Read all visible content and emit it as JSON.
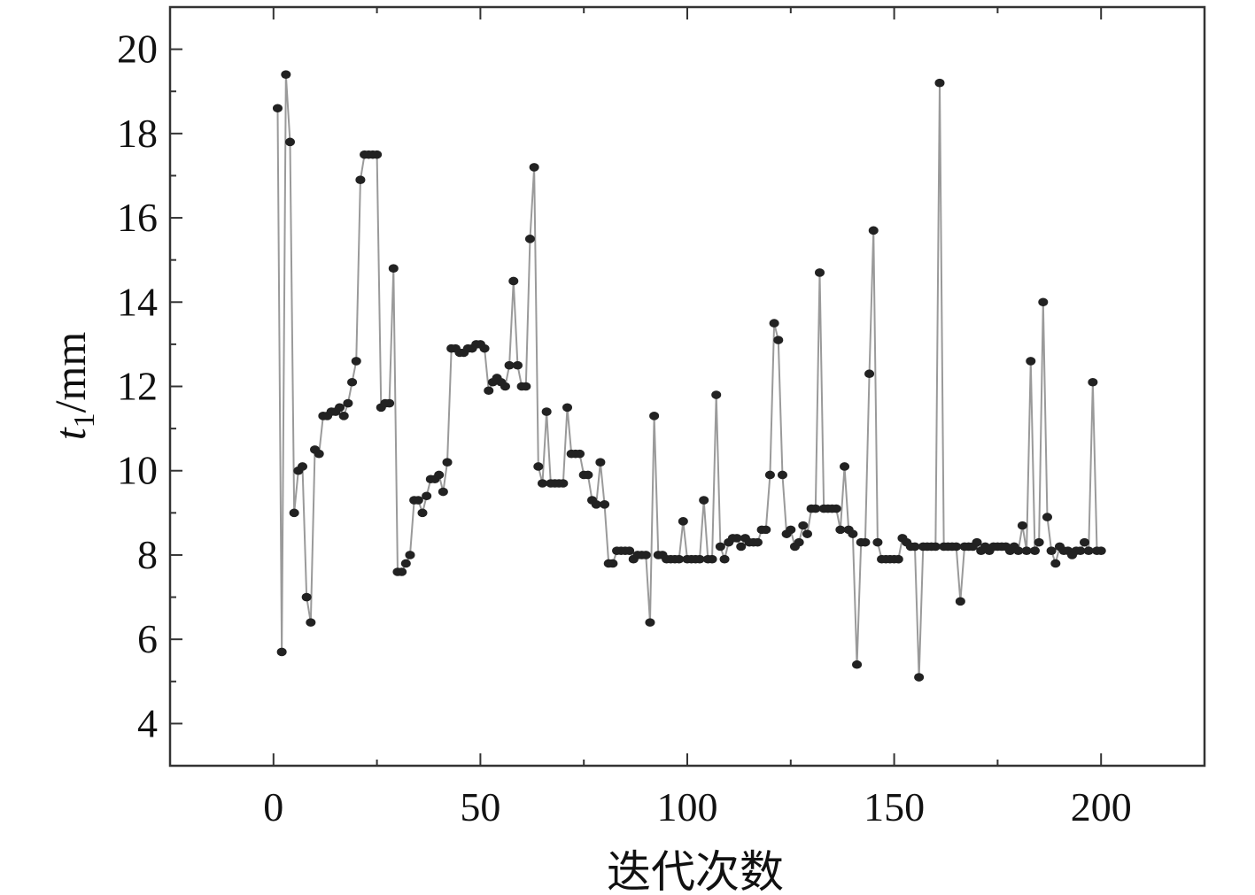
{
  "chart_data": {
    "type": "line",
    "title": "",
    "xlabel": "迭代次数",
    "ylabel": {
      "var": "t",
      "sub": "1",
      "unit": "/mm"
    },
    "xlim": [
      -25,
      225
    ],
    "ylim": [
      3,
      21
    ],
    "xticks": [
      0,
      50,
      100,
      150,
      200
    ],
    "yticks": [
      4,
      6,
      8,
      10,
      12,
      14,
      16,
      18,
      20
    ],
    "grid": false,
    "legend": "none",
    "line_color": "#9a9a9a",
    "marker_color": "#222222",
    "series": [
      {
        "name": "t1",
        "x_start": 1,
        "values": [
          18.6,
          5.7,
          19.4,
          17.8,
          9.0,
          10.0,
          10.1,
          7.0,
          6.4,
          10.5,
          10.4,
          11.3,
          11.3,
          11.4,
          11.4,
          11.5,
          11.3,
          11.6,
          12.1,
          12.6,
          16.9,
          17.5,
          17.5,
          17.5,
          17.5,
          11.5,
          11.6,
          11.6,
          14.8,
          7.6,
          7.6,
          7.8,
          8.0,
          9.3,
          9.3,
          9.0,
          9.4,
          9.8,
          9.8,
          9.9,
          9.5,
          10.2,
          12.9,
          12.9,
          12.8,
          12.8,
          12.9,
          12.9,
          13.0,
          13.0,
          12.9,
          11.9,
          12.1,
          12.2,
          12.1,
          12.0,
          12.5,
          14.5,
          12.5,
          12.0,
          12.0,
          15.5,
          17.2,
          10.1,
          9.7,
          11.4,
          9.7,
          9.7,
          9.7,
          9.7,
          11.5,
          10.4,
          10.4,
          10.4,
          9.9,
          9.9,
          9.3,
          9.2,
          10.2,
          9.2,
          7.8,
          7.8,
          8.1,
          8.1,
          8.1,
          8.1,
          7.9,
          8.0,
          8.0,
          8.0,
          6.4,
          11.3,
          8.0,
          8.0,
          7.9,
          7.9,
          7.9,
          7.9,
          8.8,
          7.9,
          7.9,
          7.9,
          7.9,
          9.3,
          7.9,
          7.9,
          11.8,
          8.2,
          7.9,
          8.3,
          8.4,
          8.4,
          8.2,
          8.4,
          8.3,
          8.3,
          8.3,
          8.6,
          8.6,
          9.9,
          13.5,
          13.1,
          9.9,
          8.5,
          8.6,
          8.2,
          8.3,
          8.7,
          8.5,
          9.1,
          9.1,
          14.7,
          9.1,
          9.1,
          9.1,
          9.1,
          8.6,
          10.1,
          8.6,
          8.5,
          5.4,
          8.3,
          8.3,
          12.3,
          15.7,
          8.3,
          7.9,
          7.9,
          7.9,
          7.9,
          7.9,
          8.4,
          8.3,
          8.2,
          8.2,
          5.1,
          8.2,
          8.2,
          8.2,
          8.2,
          19.2,
          8.2,
          8.2,
          8.2,
          8.2,
          6.9,
          8.2,
          8.2,
          8.2,
          8.3,
          8.1,
          8.2,
          8.1,
          8.2,
          8.2,
          8.2,
          8.2,
          8.1,
          8.2,
          8.1,
          8.7,
          8.1,
          12.6,
          8.1,
          8.3,
          14.0,
          8.9,
          8.1,
          7.8,
          8.2,
          8.1,
          8.1,
          8.0,
          8.1,
          8.1,
          8.3,
          8.1,
          12.1,
          8.1,
          8.1
        ]
      }
    ]
  }
}
